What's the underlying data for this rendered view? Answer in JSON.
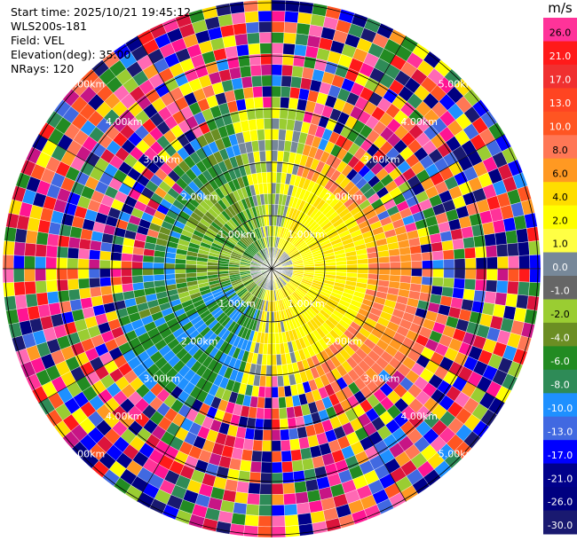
{
  "header": {
    "start_time": "Start time: 2025/10/21 19:45:12",
    "instrument": "WLS200s-181",
    "field": "Field: VEL",
    "elevation": "Elevation(deg): 35.00",
    "nrays": "NRays: 120"
  },
  "colorbar": {
    "unit": "m/s",
    "bands": [
      {
        "label": "26.0",
        "color": "#ff3399"
      },
      {
        "label": "21.0",
        "color": "#ff1a1a"
      },
      {
        "label": "17.0",
        "color": "#f03030"
      },
      {
        "label": "13.0",
        "color": "#ff4422"
      },
      {
        "label": "10.0",
        "color": "#ff5522"
      },
      {
        "label": "8.0",
        "color": "#ff7755"
      },
      {
        "label": "6.0",
        "color": "#ff9922"
      },
      {
        "label": "4.0",
        "color": "#ffdd00"
      },
      {
        "label": "2.0",
        "color": "#ffff00"
      },
      {
        "label": "1.0",
        "color": "#ffff44"
      },
      {
        "label": "0.0",
        "color": "#778899"
      },
      {
        "label": "-1.0",
        "color": "#666666"
      },
      {
        "label": "-2.0",
        "color": "#9acd32"
      },
      {
        "label": "-4.0",
        "color": "#6b8e23"
      },
      {
        "label": "-6.0",
        "color": "#228b22"
      },
      {
        "label": "-8.0",
        "color": "#2e8b57"
      },
      {
        "label": "-10.0",
        "color": "#1e90ff"
      },
      {
        "label": "-13.0",
        "color": "#4169e1"
      },
      {
        "label": "-17.0",
        "color": "#0000ff"
      },
      {
        "label": "-21.0",
        "color": "#00008b"
      },
      {
        "label": "-26.0",
        "color": "#000080"
      },
      {
        "label": "-30.0",
        "color": "#191970"
      }
    ]
  },
  "rings": [
    {
      "label": "1.00km"
    },
    {
      "label": "2.00km"
    },
    {
      "label": "3.00km"
    },
    {
      "label": "4.00km"
    },
    {
      "label": "5.00km"
    }
  ],
  "noise_palette": [
    "#ff3399",
    "#ff1a1a",
    "#ff5522",
    "#ff7755",
    "#ff9922",
    "#ffdd00",
    "#ffff00",
    "#0000ff",
    "#00008b",
    "#191970",
    "#4169e1",
    "#1e90ff",
    "#9acd32",
    "#2e8b57",
    "#ff69b4",
    "#ff1493",
    "#c71585",
    "#dc143c",
    "#228b22",
    "#000080"
  ]
}
